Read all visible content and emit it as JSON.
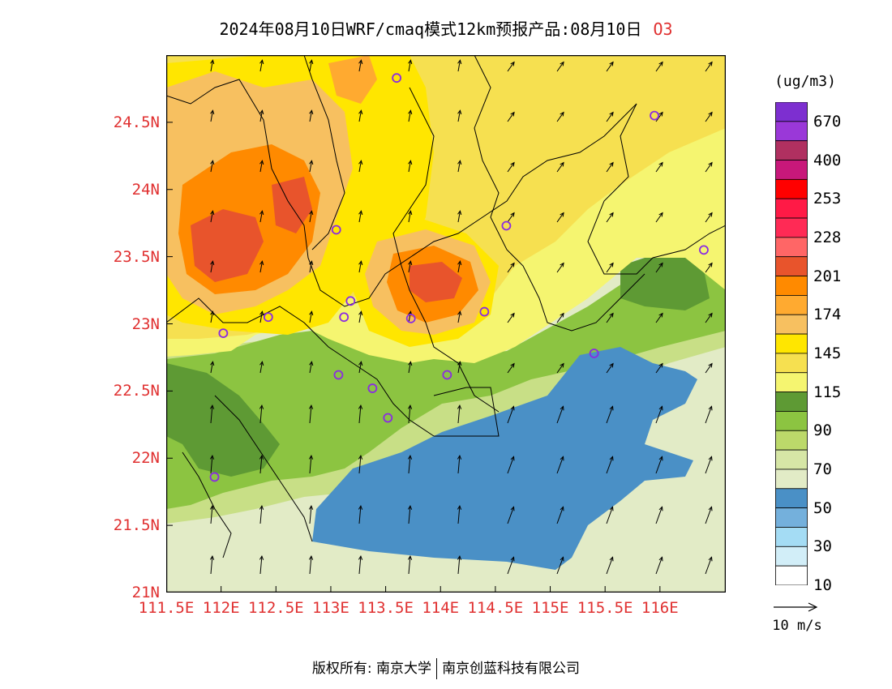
{
  "title": {
    "main": "2024年08月10日WRF/cmaq模式12km预报产品:08月10日",
    "pollutant": "O3"
  },
  "map": {
    "lon_range": [
      111.5,
      116.6
    ],
    "lat_range": [
      21.0,
      25.0
    ],
    "lat_ticks": [
      {
        "value": 21.0,
        "label": "21N"
      },
      {
        "value": 21.5,
        "label": "21.5N"
      },
      {
        "value": 22.0,
        "label": "22N"
      },
      {
        "value": 22.5,
        "label": "22.5N"
      },
      {
        "value": 23.0,
        "label": "23N"
      },
      {
        "value": 23.5,
        "label": "23.5N"
      },
      {
        "value": 24.0,
        "label": "24N"
      },
      {
        "value": 24.5,
        "label": "24.5N"
      }
    ],
    "lon_ticks": [
      {
        "value": 111.5,
        "label": "111.5E"
      },
      {
        "value": 112.0,
        "label": "112E"
      },
      {
        "value": 112.5,
        "label": "112.5E"
      },
      {
        "value": 113.0,
        "label": "113E"
      },
      {
        "value": 113.5,
        "label": "113.5E"
      },
      {
        "value": 114.0,
        "label": "114E"
      },
      {
        "value": 114.5,
        "label": "114.5E"
      },
      {
        "value": 115.0,
        "label": "115E"
      },
      {
        "value": 115.5,
        "label": "115.5E"
      },
      {
        "value": 116.0,
        "label": "116E"
      }
    ],
    "stations": [
      {
        "lon": 113.6,
        "lat": 24.83
      },
      {
        "lon": 115.95,
        "lat": 24.55
      },
      {
        "lon": 113.05,
        "lat": 23.7
      },
      {
        "lon": 114.6,
        "lat": 23.73
      },
      {
        "lon": 116.4,
        "lat": 23.55
      },
      {
        "lon": 113.18,
        "lat": 23.17
      },
      {
        "lon": 112.43,
        "lat": 23.05
      },
      {
        "lon": 113.12,
        "lat": 23.05
      },
      {
        "lon": 113.73,
        "lat": 23.04
      },
      {
        "lon": 114.4,
        "lat": 23.09
      },
      {
        "lon": 112.02,
        "lat": 22.93
      },
      {
        "lon": 115.4,
        "lat": 22.78
      },
      {
        "lon": 113.07,
        "lat": 22.62
      },
      {
        "lon": 114.06,
        "lat": 22.62
      },
      {
        "lon": 113.38,
        "lat": 22.52
      },
      {
        "lon": 113.52,
        "lat": 22.3
      },
      {
        "lon": 111.94,
        "lat": 21.86
      }
    ]
  },
  "legend": {
    "unit": "(ug/m3)",
    "labels": [
      "670",
      "400",
      "253",
      "228",
      "201",
      "174",
      "145",
      "115",
      "90",
      "70",
      "50",
      "30",
      "10"
    ],
    "colors": [
      "#7d2fd0",
      "#9a38d8",
      "#b03060",
      "#c8187a",
      "#ff0000",
      "#ff1a46",
      "#ff2a55",
      "#ff6666",
      "#e8542c",
      "#ff8a00",
      "#ffaa30",
      "#f7c060",
      "#ffe600",
      "#f6e050",
      "#f5f570",
      "#5e9a34",
      "#8cc441",
      "#bcd96a",
      "#d6e6a6",
      "#e2ebc6",
      "#4a90c6",
      "#74b0dc",
      "#a4dcf4",
      "#d2eef8",
      "#ffffff"
    ]
  },
  "wind_reference": {
    "label": "10 m/s"
  },
  "footer": {
    "left": "版权所有: 南京大学",
    "right": "南京创蓝科技有限公司"
  }
}
